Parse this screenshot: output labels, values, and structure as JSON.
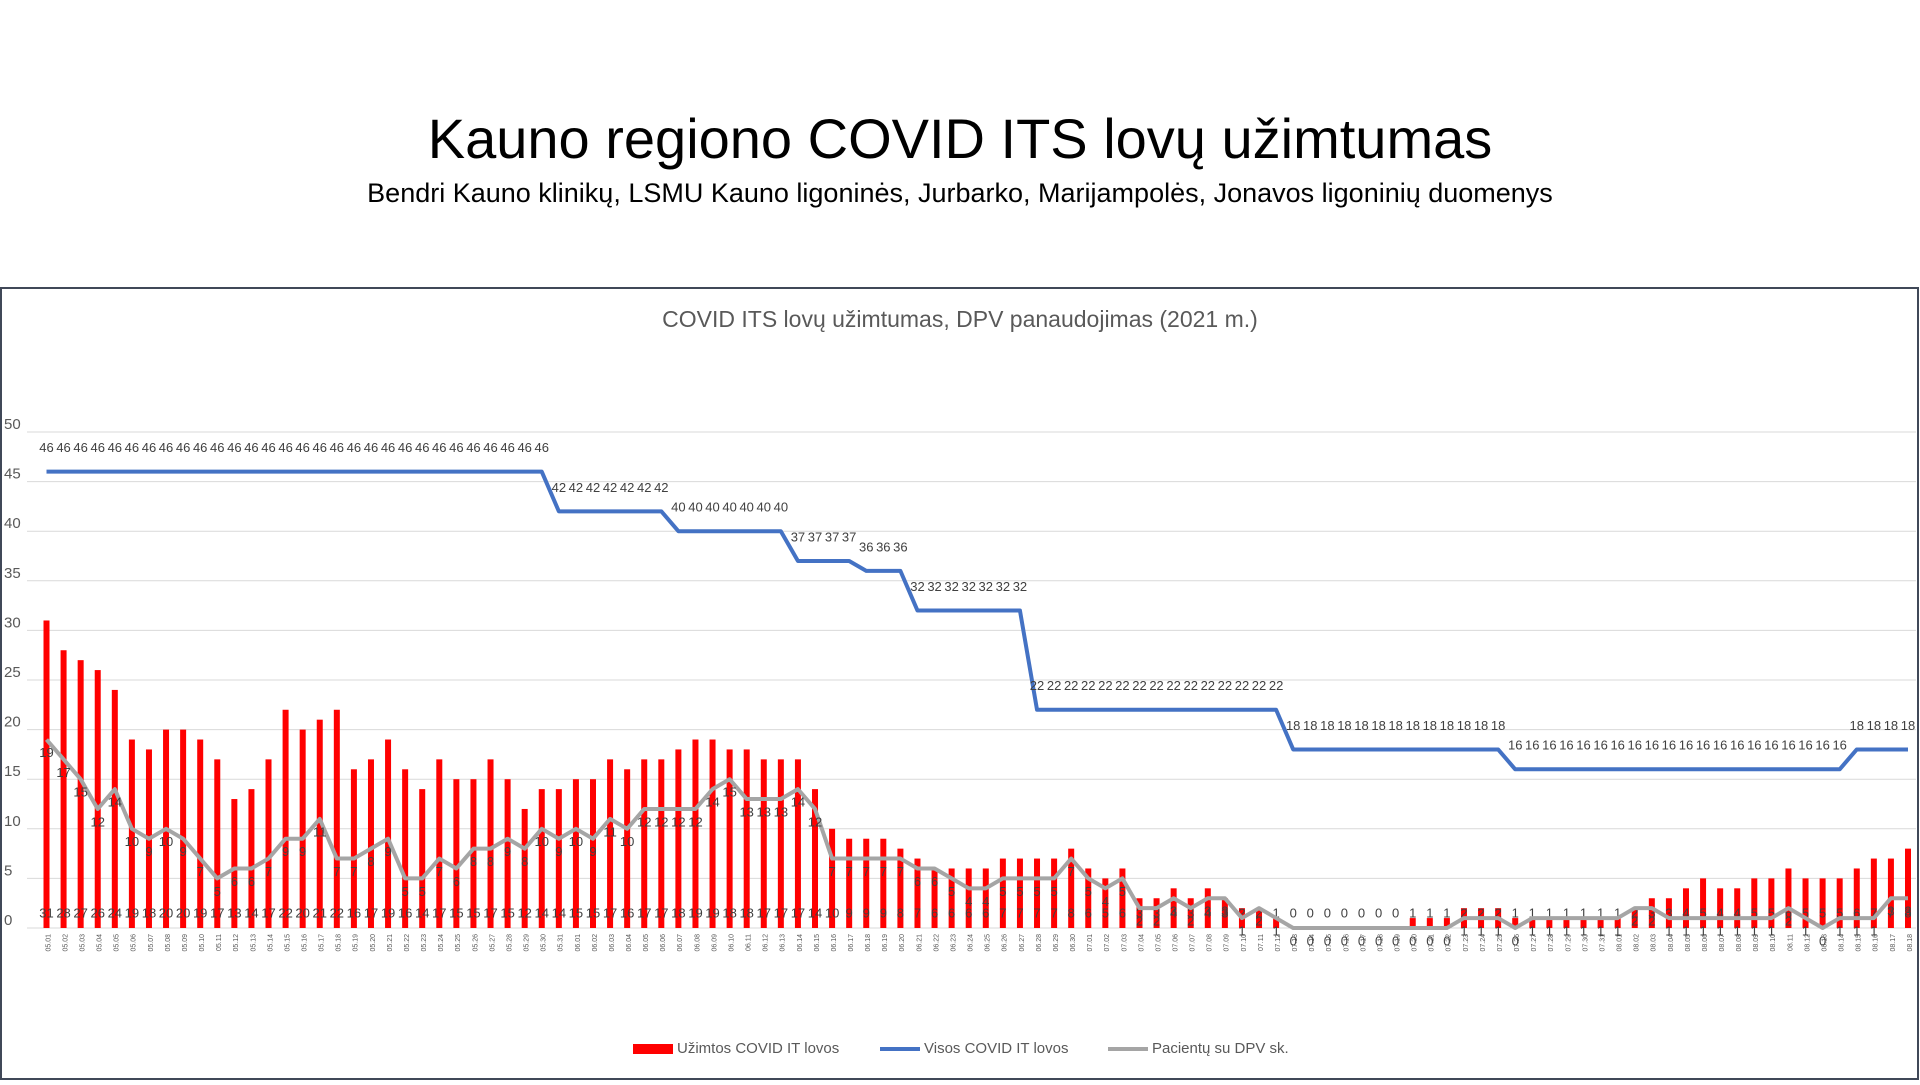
{
  "header": {
    "title": "Kauno regiono COVID ITS lovų užimtumas",
    "subtitle": "Bendri Kauno klinikų, LSMU Kauno ligoninės, Jurbarko, Marijampolės, Jonavos ligoninių duomenys"
  },
  "chart_data": {
    "type": "bar",
    "title": "COVID ITS lovų užimtumas, DPV panaudojimas (2021 m.)",
    "categories": [
      "05.01",
      "05.02",
      "05.03",
      "05.04",
      "05.05",
      "05.06",
      "05.07",
      "05.08",
      "05.09",
      "05.10",
      "05.11",
      "05.12",
      "05.13",
      "05.14",
      "05.15",
      "05.16",
      "05.17",
      "05.18",
      "05.19",
      "05.20",
      "05.21",
      "05.22",
      "05.23",
      "05.24",
      "05.25",
      "05.26",
      "05.27",
      "05.28",
      "05.29",
      "05.30",
      "05.31",
      "06.01",
      "06.02",
      "06.03",
      "06.04",
      "06.05",
      "06.06",
      "06.07",
      "06.08",
      "06.09",
      "06.10",
      "06.11",
      "06.12",
      "06.13",
      "06.14",
      "06.15",
      "06.16",
      "06.17",
      "06.18",
      "06.19",
      "06.20",
      "06.21",
      "06.22",
      "06.23",
      "06.24",
      "06.25",
      "06.26",
      "06.27",
      "06.28",
      "06.29",
      "06.30",
      "07.01",
      "07.02",
      "07.03",
      "07.04",
      "07.05",
      "07.06",
      "07.07",
      "07.08",
      "07.09",
      "07.10",
      "07.11",
      "07.12",
      "07.13",
      "07.14",
      "07.15",
      "07.16",
      "07.17",
      "07.18",
      "07.19",
      "07.20",
      "07.21",
      "07.22",
      "07.23",
      "07.24",
      "07.25",
      "07.26",
      "07.27",
      "07.28",
      "07.29",
      "07.30",
      "07.31",
      "08.01",
      "08.02",
      "08.03",
      "08.04",
      "08.05",
      "08.06",
      "08.07",
      "08.08",
      "08.09",
      "08.10",
      "08.11",
      "08.12",
      "08.13",
      "08.14",
      "08.15",
      "08.16",
      "08.17",
      "08.18"
    ],
    "series": [
      {
        "name": "Užimtos COVID IT lovos",
        "type": "bar",
        "color": "#ff0000",
        "values": [
          31,
          28,
          27,
          26,
          24,
          19,
          18,
          20,
          20,
          19,
          17,
          13,
          14,
          17,
          22,
          20,
          21,
          22,
          16,
          17,
          19,
          16,
          14,
          17,
          15,
          15,
          17,
          15,
          12,
          14,
          14,
          15,
          15,
          17,
          16,
          17,
          17,
          18,
          19,
          19,
          18,
          18,
          17,
          17,
          17,
          14,
          10,
          9,
          9,
          9,
          8,
          7,
          6,
          6,
          6,
          6,
          7,
          7,
          7,
          7,
          8,
          6,
          5,
          6,
          3,
          3,
          4,
          3,
          4,
          3,
          2,
          2,
          1,
          0,
          0,
          0,
          0,
          0,
          0,
          0,
          1,
          1,
          1,
          2,
          2,
          2,
          1,
          1,
          1,
          1,
          1,
          1,
          1,
          2,
          3,
          3,
          4,
          5,
          4,
          4,
          5,
          5,
          6,
          5,
          5,
          5,
          6,
          7,
          7,
          8
        ]
      },
      {
        "name": "Visos COVID IT lovos",
        "type": "line",
        "color": "#4472c4",
        "values": [
          46,
          46,
          46,
          46,
          46,
          46,
          46,
          46,
          46,
          46,
          46,
          46,
          46,
          46,
          46,
          46,
          46,
          46,
          46,
          46,
          46,
          46,
          46,
          46,
          46,
          46,
          46,
          46,
          46,
          46,
          42,
          42,
          42,
          42,
          42,
          42,
          42,
          40,
          40,
          40,
          40,
          40,
          40,
          40,
          37,
          37,
          37,
          37,
          36,
          36,
          36,
          32,
          32,
          32,
          32,
          32,
          32,
          32,
          22,
          22,
          22,
          22,
          22,
          22,
          22,
          22,
          22,
          22,
          22,
          22,
          22,
          22,
          22,
          18,
          18,
          18,
          18,
          18,
          18,
          18,
          18,
          18,
          18,
          18,
          18,
          18,
          16,
          16,
          16,
          16,
          16,
          16,
          16,
          16,
          16,
          16,
          16,
          16,
          16,
          16,
          16,
          16,
          16,
          16,
          16,
          16,
          18,
          18,
          18,
          18
        ]
      },
      {
        "name": "Pacientų su DPV sk.",
        "type": "line",
        "color": "#a5a5a5",
        "values": [
          19,
          17,
          15,
          12,
          14,
          10,
          9,
          10,
          9,
          7,
          5,
          6,
          6,
          7,
          9,
          9,
          11,
          7,
          7,
          8,
          9,
          5,
          5,
          7,
          6,
          8,
          8,
          9,
          8,
          10,
          9,
          10,
          9,
          11,
          10,
          12,
          12,
          12,
          12,
          14,
          15,
          13,
          13,
          13,
          14,
          12,
          7,
          7,
          7,
          7,
          7,
          6,
          6,
          5,
          4,
          4,
          5,
          5,
          5,
          5,
          7,
          5,
          4,
          5,
          2,
          2,
          3,
          2,
          3,
          3,
          1,
          2,
          1,
          0,
          0,
          0,
          0,
          0,
          0,
          0,
          0,
          0,
          0,
          1,
          1,
          1,
          0,
          1,
          1,
          1,
          1,
          1,
          1,
          2,
          2,
          1,
          1,
          1,
          1,
          1,
          1,
          1,
          2,
          1,
          0,
          1,
          1,
          1,
          3,
          3
        ]
      }
    ],
    "ylim": [
      0,
      50
    ],
    "yticks": [
      0,
      5,
      10,
      15,
      20,
      25,
      30,
      35,
      40,
      45,
      50
    ],
    "grid": true,
    "legend": "bottom"
  }
}
